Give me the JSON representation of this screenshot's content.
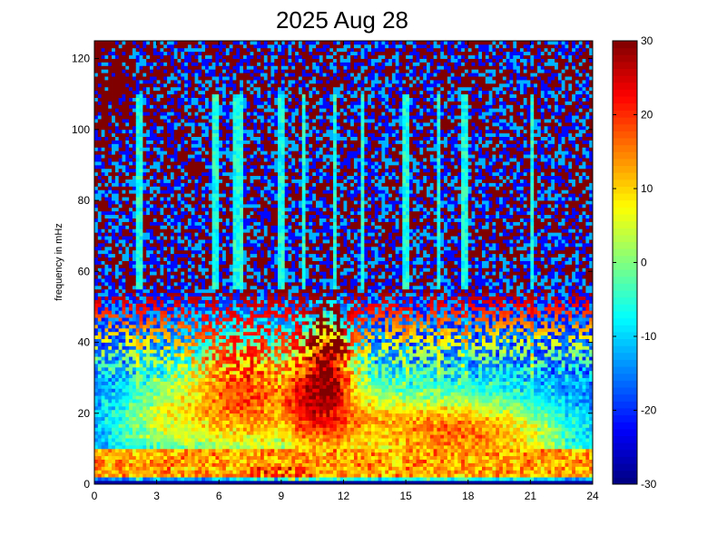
{
  "chart_data": {
    "type": "heatmap",
    "title": "2025 Aug 28",
    "xlabel": "",
    "ylabel": "frequency in mHz",
    "xlim": [
      0,
      24
    ],
    "ylim": [
      0,
      125
    ],
    "x_ticks": [
      0,
      3,
      6,
      9,
      12,
      15,
      18,
      21,
      24
    ],
    "x_tick_labels": [
      "0",
      "3",
      "6",
      "9",
      "12",
      "15",
      "18",
      "21",
      "24"
    ],
    "y_ticks": [
      0,
      20,
      40,
      60,
      80,
      100,
      120
    ],
    "y_tick_labels": [
      "0",
      "20",
      "40",
      "60",
      "80",
      "100",
      "120"
    ],
    "colorbar": {
      "colormap": "jet",
      "clim": [
        -30,
        30
      ],
      "ticks": [
        -30,
        -20,
        -10,
        0,
        10,
        20,
        30
      ],
      "tick_labels": [
        "-30",
        "-20",
        "-10",
        "0",
        "10",
        "20",
        "30"
      ]
    },
    "approximate_features": {
      "background_high_freq_level": "alternating -25 and 30 (noise)",
      "low_freq_band_0_10mHz_level": 15,
      "broadband_activity_hours": [
        4.5,
        12
      ],
      "broadband_activity_freq_max_mHz": 55,
      "vertical_streak_hours": [
        2.2,
        5.8,
        6.8,
        7.0,
        9.0,
        10.1,
        11.6,
        12.9,
        15.0,
        16.6,
        17.8,
        21.1
      ]
    }
  }
}
